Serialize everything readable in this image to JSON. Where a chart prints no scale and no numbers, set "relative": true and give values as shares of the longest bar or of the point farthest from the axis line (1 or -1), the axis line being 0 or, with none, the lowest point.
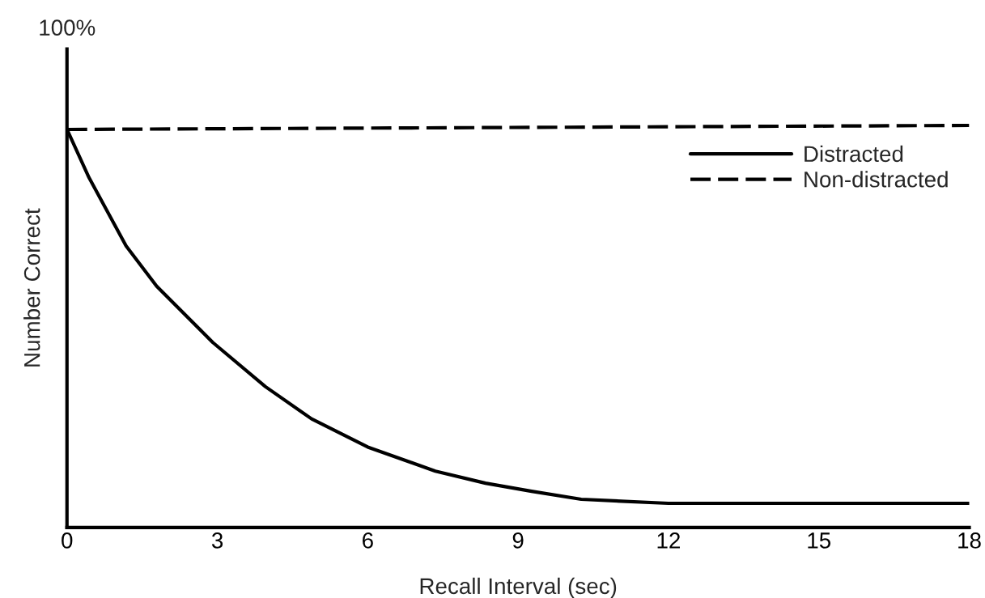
{
  "chart_data": {
    "type": "line",
    "relative": true,
    "xlabel": "Recall Interval (sec)",
    "ylabel": "Number Correct",
    "annotations": [
      "100%"
    ],
    "xlim": [
      0,
      18
    ],
    "xticks": [
      0,
      3,
      6,
      9,
      12,
      15,
      18
    ],
    "legend": "right",
    "grid": false,
    "series": [
      {
        "name": "Distracted",
        "color": "#000000",
        "line_style": "solid",
        "x": [
          0,
          0.44,
          1.18,
          1.79,
          2.91,
          3.96,
          4.88,
          6.0,
          7.35,
          8.35,
          9.27,
          10.26,
          12,
          15,
          18
        ],
        "values": [
          0.99,
          0.87,
          0.7,
          0.6,
          0.46,
          0.35,
          0.27,
          0.2,
          0.14,
          0.11,
          0.09,
          0.07,
          0.06,
          0.06,
          0.06
        ]
      },
      {
        "name": "Non-distracted",
        "color": "#000000",
        "line_style": "dashed",
        "x": [
          0,
          18
        ],
        "values": [
          0.99,
          1.0
        ]
      }
    ]
  }
}
